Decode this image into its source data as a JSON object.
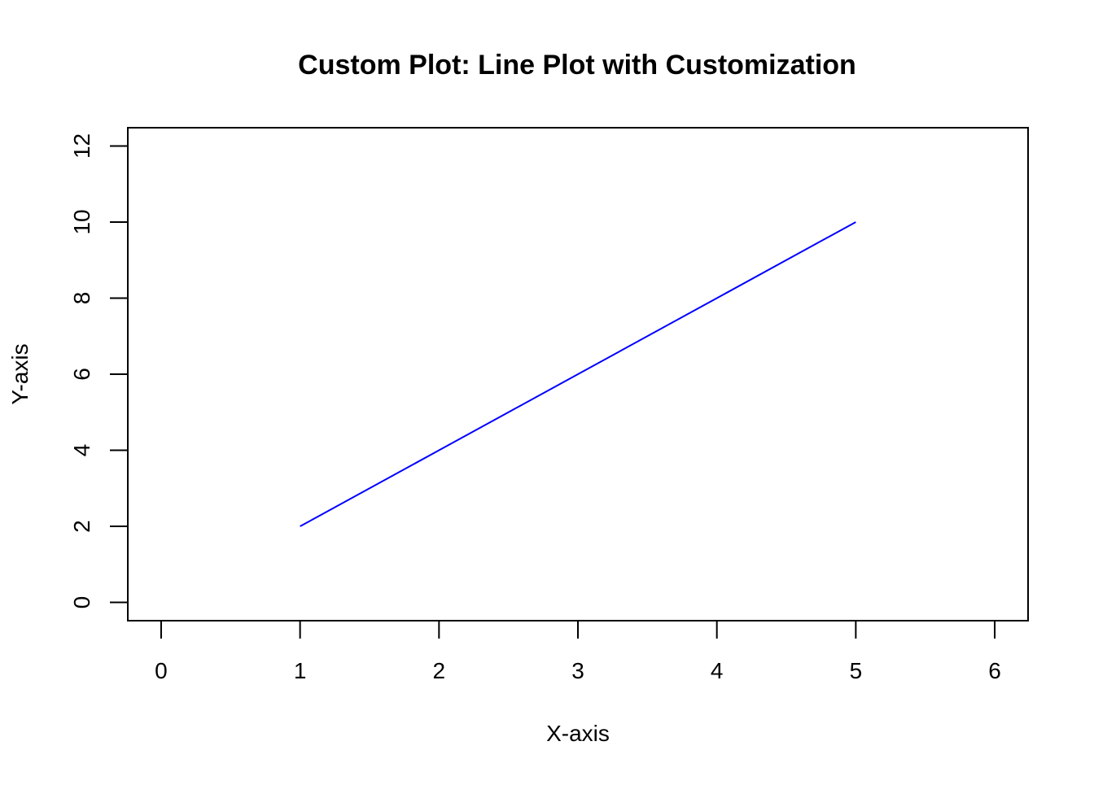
{
  "chart_data": {
    "type": "line",
    "title": "Custom Plot:  Line Plot with Customization",
    "xlabel": "X-axis",
    "ylabel": "Y-axis",
    "xlim": [
      -0.24,
      6.24
    ],
    "ylim": [
      -0.48,
      12.48
    ],
    "x_ticks": [
      0,
      1,
      2,
      3,
      4,
      5,
      6
    ],
    "y_ticks": [
      0,
      2,
      4,
      6,
      8,
      10,
      12
    ],
    "x_tick_labels": [
      "0",
      "1",
      "2",
      "3",
      "4",
      "5",
      "6"
    ],
    "y_tick_labels": [
      "0",
      "2",
      "4",
      "6",
      "8",
      "10",
      "12"
    ],
    "grid": false,
    "series": [
      {
        "x": [
          1,
          2,
          3,
          4,
          5
        ],
        "values": [
          2,
          4,
          6,
          8,
          10
        ],
        "color": "#0000ff"
      }
    ]
  }
}
